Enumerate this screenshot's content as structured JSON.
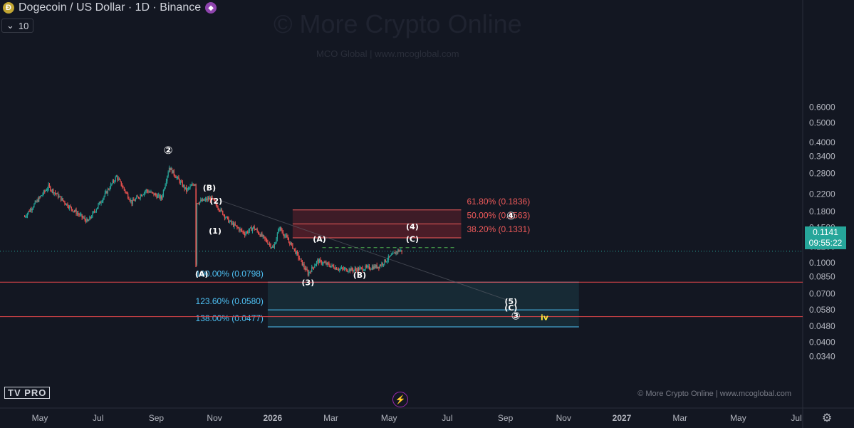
{
  "header": {
    "title": "Dogecoin / US Dollar · 1D · Binance",
    "coin_icon": "dogecoin-icon",
    "exchange_icon": "binance-icon",
    "indicator_value": "10"
  },
  "watermark": {
    "main": "© More Crypto Online",
    "sub": "MCO Global   |   www.mcoglobal.com"
  },
  "footer": {
    "credit": "© More Crypto Online   |   www.mcoglobal.com",
    "logo_text": "TV PRO"
  },
  "price_tag": {
    "price": "0.1141",
    "countdown": "09:55:22",
    "color": "#26a69a"
  },
  "colors": {
    "up": "#26a69a",
    "down": "#ef5350",
    "fib_red": "#f05a5a",
    "fib_blue": "#4fc3f7",
    "bg": "#131722"
  },
  "chart_data": {
    "type": "candlestick",
    "title": "Dogecoin / US Dollar · 1D · Binance",
    "y_scale": "log",
    "y_ticks": [
      "0.6000",
      "0.5000",
      "0.4000",
      "0.3400",
      "0.2800",
      "0.2200",
      "0.1800",
      "0.1500",
      "0.1200",
      "0.1000",
      "0.0850",
      "0.0700",
      "0.0580",
      "0.0480",
      "0.0400",
      "0.0340"
    ],
    "x_ticks": [
      "May",
      "Jul",
      "Sep",
      "Nov",
      "2026",
      "Mar",
      "May",
      "Jul",
      "Sep",
      "Nov",
      "2027",
      "Mar",
      "May",
      "Jul"
    ],
    "current_price": 0.1141,
    "price_path": [
      [
        "2025-04-15",
        0.17
      ],
      [
        "2025-05-10",
        0.24
      ],
      [
        "2025-06-01",
        0.19
      ],
      [
        "2025-06-20",
        0.16
      ],
      [
        "2025-07-20",
        0.27
      ],
      [
        "2025-08-05",
        0.2
      ],
      [
        "2025-08-20",
        0.23
      ],
      [
        "2025-09-05",
        0.21
      ],
      [
        "2025-09-13",
        0.3
      ],
      [
        "2025-10-01",
        0.23
      ],
      [
        "2025-10-10",
        0.25
      ],
      [
        "2025-10-11",
        0.1
      ],
      [
        "2025-10-12",
        0.2
      ],
      [
        "2025-10-27",
        0.21
      ],
      [
        "2025-11-15",
        0.16
      ],
      [
        "2025-12-01",
        0.14
      ],
      [
        "2025-12-10",
        0.15
      ],
      [
        "2025-12-31",
        0.118
      ],
      [
        "2026-01-06",
        0.15
      ],
      [
        "2026-01-20",
        0.12
      ],
      [
        "2026-02-05",
        0.088
      ],
      [
        "2026-02-15",
        0.102
      ],
      [
        "2026-03-10",
        0.093
      ],
      [
        "2026-03-25",
        0.092
      ],
      [
        "2026-04-20",
        0.096
      ],
      [
        "2026-05-10",
        0.115
      ],
      [
        "2026-05-15",
        0.1141
      ]
    ],
    "wave_labels": [
      {
        "text": "②",
        "date": "2025-09-12",
        "price": 0.35
      },
      {
        "text": "(B)",
        "date": "2025-10-25",
        "price": 0.23
      },
      {
        "text": "(2)",
        "date": "2025-11-01",
        "price": 0.197
      },
      {
        "text": "(1)",
        "date": "2025-10-31",
        "price": 0.14
      },
      {
        "text": "(A)",
        "date": "2025-10-17",
        "price": 0.085
      },
      {
        "text": "(3)",
        "date": "2026-02-05",
        "price": 0.077
      },
      {
        "text": "(A)",
        "date": "2026-02-17",
        "price": 0.127
      },
      {
        "text": "(B)",
        "date": "2026-03-31",
        "price": 0.084
      },
      {
        "text": "(4)",
        "date": "2026-05-25",
        "price": 0.147
      },
      {
        "text": "(C)",
        "date": "2026-05-25",
        "price": 0.127
      },
      {
        "text": "④",
        "date": "2026-09-05",
        "price": 0.165
      },
      {
        "text": "(5)",
        "date": "2026-09-05",
        "price": 0.062
      },
      {
        "text": "(C)",
        "date": "2026-09-05",
        "price": 0.0575
      },
      {
        "text": "③",
        "date": "2026-09-10",
        "price": 0.052
      },
      {
        "text": "iv",
        "date": "2026-10-10",
        "price": 0.0515
      }
    ],
    "fib_upper": [
      {
        "label": "61.80% (0.1836)",
        "price": 0.1836
      },
      {
        "label": "50.00% (0.1563)",
        "price": 0.1563
      },
      {
        "label": "38.20% (0.1331)",
        "price": 0.1331
      }
    ],
    "fib_lower": [
      {
        "label": "100.00% (0.0798)",
        "price": 0.0798
      },
      {
        "label": "123.60% (0.0580)",
        "price": 0.058
      },
      {
        "label": "138.00% (0.0477)",
        "price": 0.0477
      }
    ],
    "horizontal_lines": [
      0.0798,
      0.0537
    ],
    "dashed_target": 0.1188
  }
}
